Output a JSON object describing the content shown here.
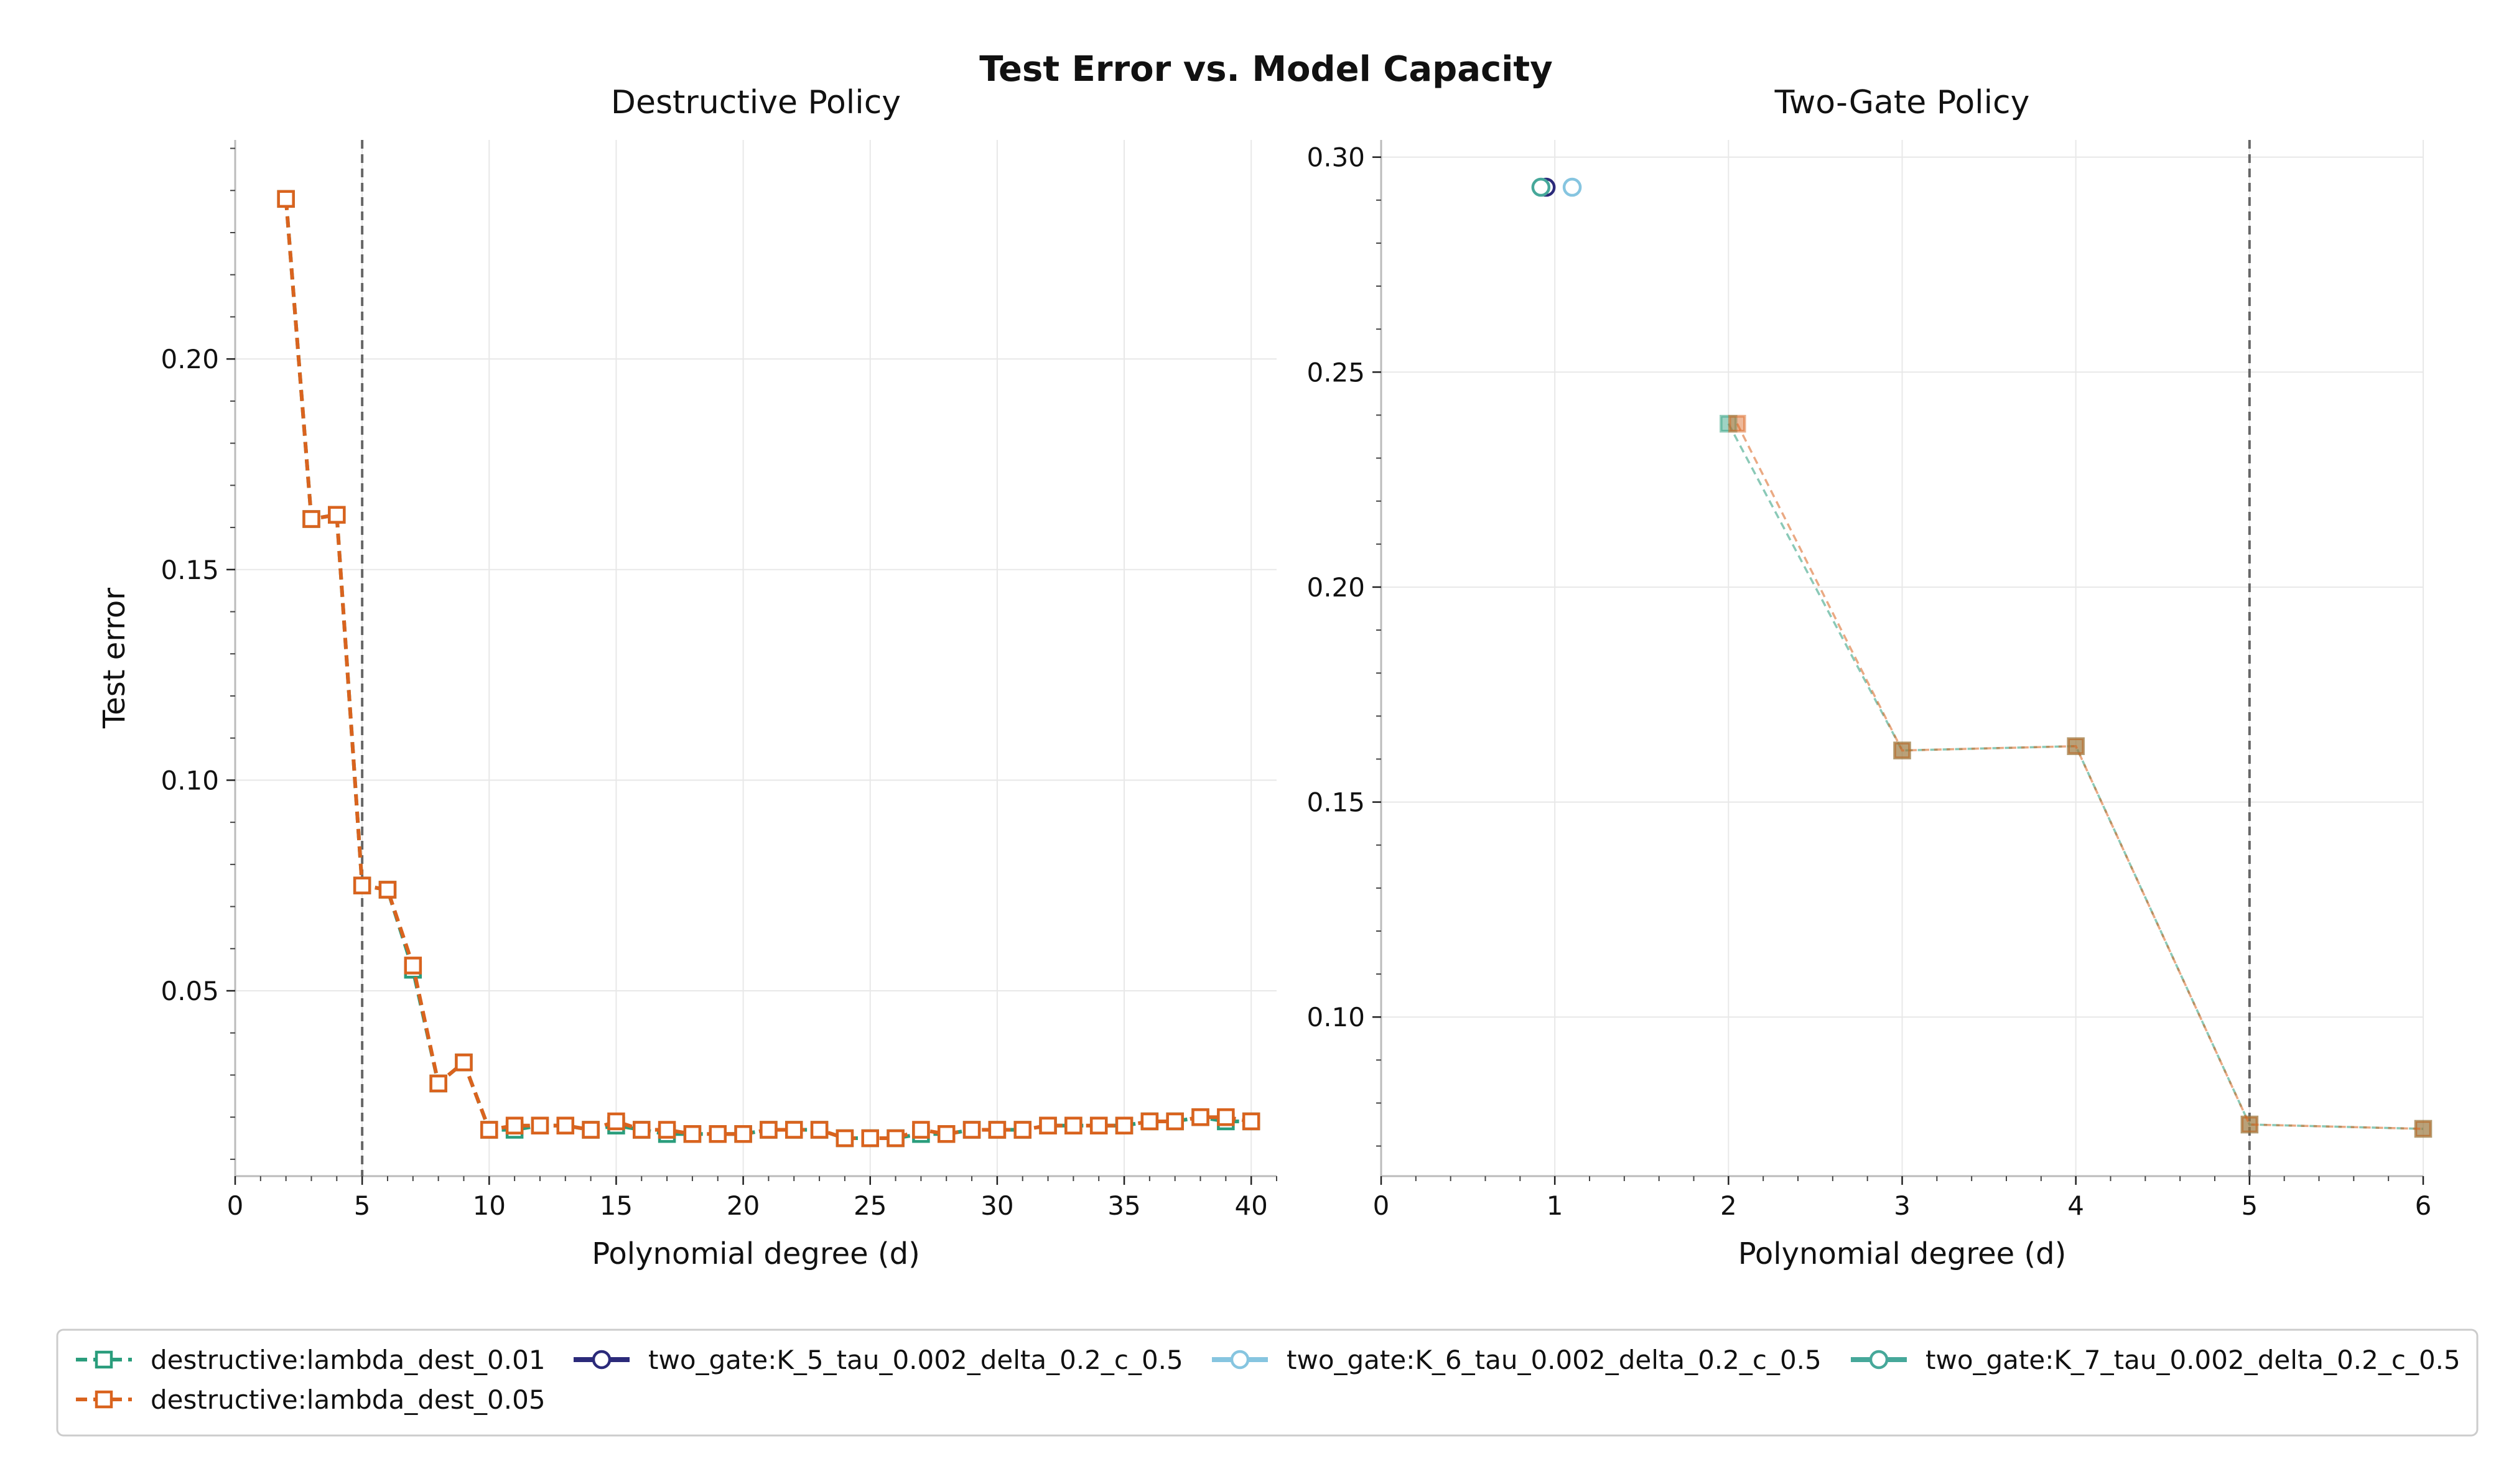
{
  "figure": {
    "title": "Test Error vs. Model Capacity"
  },
  "colors": {
    "dest_001": "#2a9d7c",
    "dest_005": "#d9631e",
    "K5": "#2b2a7a",
    "K6": "#86c5e0",
    "K7": "#46a89a",
    "vline": "#666666",
    "grid": "#e8e8e8",
    "axis": "#bbbbbb"
  },
  "chart_data": [
    {
      "id": "left",
      "type": "line",
      "title": "Destructive Policy",
      "xlabel": "Polynomial degree (d)",
      "ylabel": "Test error",
      "xlim": [
        0,
        41
      ],
      "ylim": [
        0.006,
        0.252
      ],
      "xticks": [
        0,
        5,
        10,
        15,
        20,
        25,
        30,
        35,
        40
      ],
      "yticks": [
        0.05,
        0.1,
        0.15,
        0.2
      ],
      "ytick_labels": [
        "0.05",
        "0.10",
        "0.15",
        "0.20"
      ],
      "vline_x": 5,
      "grid": true,
      "series": [
        {
          "name": "destructive:lambda_dest_0.01",
          "color_key": "dest_001",
          "marker": "square",
          "dash": true,
          "x": [
            2,
            3,
            4,
            5,
            6,
            7,
            8,
            9,
            10,
            11,
            12,
            13,
            14,
            15,
            16,
            17,
            18,
            19,
            20,
            21,
            22,
            23,
            24,
            25,
            26,
            27,
            28,
            29,
            30,
            31,
            32,
            33,
            34,
            35,
            36,
            37,
            38,
            39,
            40
          ],
          "y": [
            0.238,
            0.162,
            0.163,
            0.075,
            0.074,
            0.055,
            0.028,
            0.033,
            0.017,
            0.017,
            0.018,
            0.018,
            0.017,
            0.018,
            0.017,
            0.016,
            0.016,
            0.016,
            0.016,
            0.017,
            0.017,
            0.017,
            0.015,
            0.015,
            0.015,
            0.016,
            0.016,
            0.017,
            0.017,
            0.017,
            0.018,
            0.018,
            0.018,
            0.018,
            0.019,
            0.019,
            0.02,
            0.019,
            0.019
          ]
        },
        {
          "name": "destructive:lambda_dest_0.05",
          "color_key": "dest_005",
          "marker": "square",
          "dash": true,
          "x": [
            2,
            3,
            4,
            5,
            6,
            7,
            8,
            9,
            10,
            11,
            12,
            13,
            14,
            15,
            16,
            17,
            18,
            19,
            20,
            21,
            22,
            23,
            24,
            25,
            26,
            27,
            28,
            29,
            30,
            31,
            32,
            33,
            34,
            35,
            36,
            37,
            38,
            39,
            40
          ],
          "y": [
            0.238,
            0.162,
            0.163,
            0.075,
            0.074,
            0.056,
            0.028,
            0.033,
            0.017,
            0.018,
            0.018,
            0.018,
            0.017,
            0.019,
            0.017,
            0.017,
            0.016,
            0.016,
            0.016,
            0.017,
            0.017,
            0.017,
            0.015,
            0.015,
            0.015,
            0.017,
            0.016,
            0.017,
            0.017,
            0.017,
            0.018,
            0.018,
            0.018,
            0.018,
            0.019,
            0.019,
            0.02,
            0.02,
            0.019
          ]
        }
      ]
    },
    {
      "id": "right",
      "type": "line",
      "title": "Two-Gate Policy",
      "xlabel": "Polynomial degree (d)",
      "ylabel": "",
      "xlim": [
        0,
        6
      ],
      "ylim": [
        0.063,
        0.304
      ],
      "xticks": [
        0,
        1,
        2,
        3,
        4,
        5,
        6
      ],
      "yticks": [
        0.1,
        0.15,
        0.2,
        0.25,
        0.3
      ],
      "ytick_labels": [
        "0.10",
        "0.15",
        "0.20",
        "0.25",
        "0.30"
      ],
      "vline_x": 5,
      "grid": true,
      "series": [
        {
          "name": "destructive:lambda_dest_0.01",
          "color_key": "dest_001",
          "marker": "square",
          "dash": true,
          "faded": true,
          "x": [
            2,
            3,
            4,
            5,
            6
          ],
          "y": [
            0.238,
            0.162,
            0.163,
            0.075,
            0.074
          ]
        },
        {
          "name": "destructive:lambda_dest_0.05",
          "color_key": "dest_005",
          "marker": "square",
          "dash": true,
          "faded": true,
          "x": [
            2.05,
            3.0,
            4.0,
            5.0,
            6.0
          ],
          "y": [
            0.238,
            0.162,
            0.163,
            0.075,
            0.074
          ]
        },
        {
          "name": "two_gate:K_5_tau_0.002_delta_0.2_c_0.5",
          "color_key": "K5",
          "marker": "circle",
          "dash": false,
          "x": [
            0.95
          ],
          "y": [
            0.293
          ]
        },
        {
          "name": "two_gate:K_6_tau_0.002_delta_0.2_c_0.5",
          "color_key": "K6",
          "marker": "circle",
          "dash": false,
          "x": [
            1.1
          ],
          "y": [
            0.293
          ]
        },
        {
          "name": "two_gate:K_7_tau_0.002_delta_0.2_c_0.5",
          "color_key": "K7",
          "marker": "circle",
          "dash": false,
          "x": [
            0.92
          ],
          "y": [
            0.293
          ]
        }
      ]
    }
  ],
  "legend": {
    "placement": "bottom",
    "entries": [
      {
        "label": "destructive:lambda_dest_0.01",
        "color_key": "dest_001",
        "marker": "square",
        "dash": true
      },
      {
        "label": "two_gate:K_5_tau_0.002_delta_0.2_c_0.5",
        "color_key": "K5",
        "marker": "circle",
        "dash": false
      },
      {
        "label": "two_gate:K_6_tau_0.002_delta_0.2_c_0.5",
        "color_key": "K6",
        "marker": "circle",
        "dash": false
      },
      {
        "label": "two_gate:K_7_tau_0.002_delta_0.2_c_0.5",
        "color_key": "K7",
        "marker": "circle",
        "dash": false
      },
      {
        "label": "destructive:lambda_dest_0.05",
        "color_key": "dest_005",
        "marker": "square",
        "dash": true
      }
    ]
  }
}
